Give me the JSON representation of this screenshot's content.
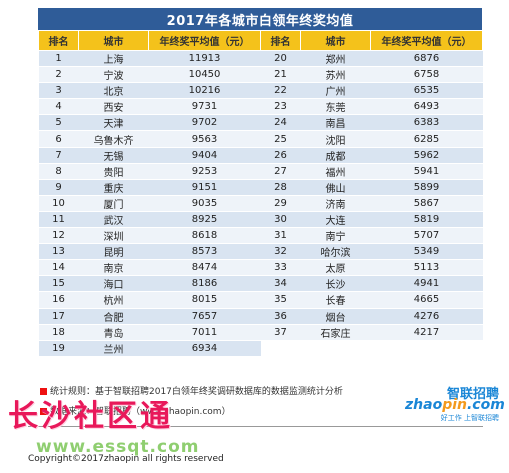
{
  "title": "2017年各城市白领年终奖均值",
  "headers": {
    "rank": "排名",
    "city": "城市",
    "value": "年终奖平均值（元）"
  },
  "rows": [
    {
      "rank": "1",
      "city": "上海",
      "value": "11913",
      "rank2": "20",
      "city2": "郑州",
      "value2": "6876"
    },
    {
      "rank": "2",
      "city": "宁波",
      "value": "10450",
      "rank2": "21",
      "city2": "苏州",
      "value2": "6758"
    },
    {
      "rank": "3",
      "city": "北京",
      "value": "10216",
      "rank2": "22",
      "city2": "广州",
      "value2": "6535"
    },
    {
      "rank": "4",
      "city": "西安",
      "value": "9731",
      "rank2": "23",
      "city2": "东莞",
      "value2": "6493"
    },
    {
      "rank": "5",
      "city": "天津",
      "value": "9702",
      "rank2": "24",
      "city2": "南昌",
      "value2": "6383"
    },
    {
      "rank": "6",
      "city": "乌鲁木齐",
      "value": "9563",
      "rank2": "25",
      "city2": "沈阳",
      "value2": "6285"
    },
    {
      "rank": "7",
      "city": "无锡",
      "value": "9404",
      "rank2": "26",
      "city2": "成都",
      "value2": "5962"
    },
    {
      "rank": "8",
      "city": "贵阳",
      "value": "9253",
      "rank2": "27",
      "city2": "福州",
      "value2": "5941"
    },
    {
      "rank": "9",
      "city": "重庆",
      "value": "9151",
      "rank2": "28",
      "city2": "佛山",
      "value2": "5899"
    },
    {
      "rank": "10",
      "city": "厦门",
      "value": "9035",
      "rank2": "29",
      "city2": "济南",
      "value2": "5867"
    },
    {
      "rank": "11",
      "city": "武汉",
      "value": "8925",
      "rank2": "30",
      "city2": "大连",
      "value2": "5819"
    },
    {
      "rank": "12",
      "city": "深圳",
      "value": "8618",
      "rank2": "31",
      "city2": "南宁",
      "value2": "5707"
    },
    {
      "rank": "13",
      "city": "昆明",
      "value": "8573",
      "rank2": "32",
      "city2": "哈尔滨",
      "value2": "5349"
    },
    {
      "rank": "14",
      "city": "南京",
      "value": "8474",
      "rank2": "33",
      "city2": "太原",
      "value2": "5113"
    },
    {
      "rank": "15",
      "city": "海口",
      "value": "8186",
      "rank2": "34",
      "city2": "长沙",
      "value2": "4941"
    },
    {
      "rank": "16",
      "city": "杭州",
      "value": "8015",
      "rank2": "35",
      "city2": "长春",
      "value2": "4665"
    },
    {
      "rank": "17",
      "city": "合肥",
      "value": "7657",
      "rank2": "36",
      "city2": "烟台",
      "value2": "4276"
    },
    {
      "rank": "18",
      "city": "青岛",
      "value": "7011",
      "rank2": "37",
      "city2": "石家庄",
      "value2": "4217"
    },
    {
      "rank": "19",
      "city": "兰州",
      "value": "6934",
      "rank2": "",
      "city2": "",
      "value2": ""
    }
  ],
  "footer": {
    "rule": "统计规则：基于智联招聘2017白领年终奖调研数据库的数据监测统计分析",
    "source": "数据来源：智联招聘（www.zhaopin.com）",
    "copyright": "Copyright©2017zhaopin all rights reserved",
    "watermark_cn": "长沙社区通",
    "watermark_url": "www.essqt.com",
    "logo_top": "智联招聘",
    "logo_main_a": "zhao",
    "logo_main_b": "pin",
    "logo_main_c": ".com",
    "logo_sub": "好工作 上智联招聘"
  },
  "colors": {
    "title_bg": "#2f5c98",
    "header_bg": "#f4c21b",
    "row_odd": "#d9e4f1",
    "row_even": "#eef3f9",
    "watermark": "#e8185a",
    "logo": "#1a86d6"
  }
}
